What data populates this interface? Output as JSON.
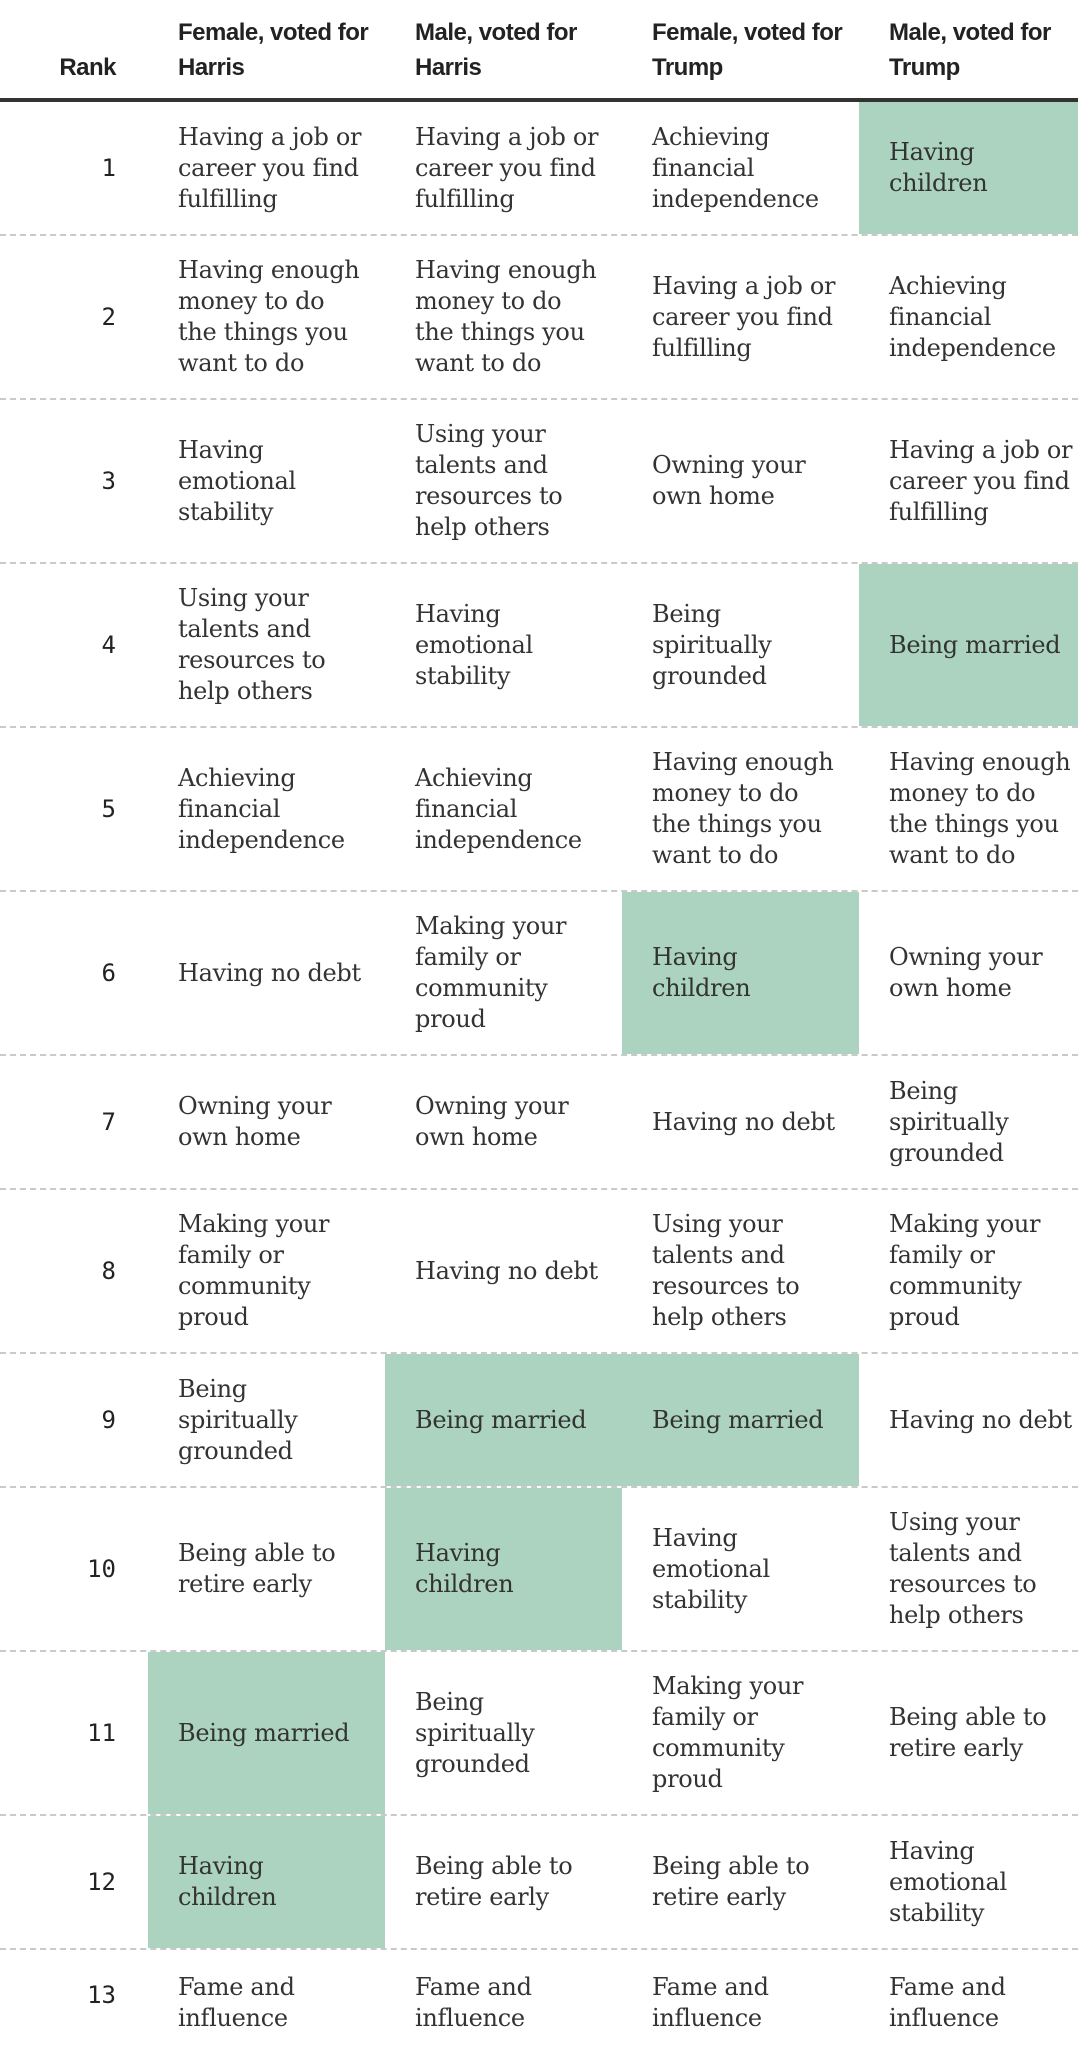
{
  "chart_data": {
    "type": "table",
    "highlight_item": "Having children / Being married",
    "highlight_color": "#abd3bf",
    "columns": [
      "Rank",
      "Female, voted for Harris",
      "Male, voted for Harris",
      "Female, voted for Trump",
      "Male, voted for Trump"
    ],
    "rows": [
      {
        "rank": "1",
        "cells": [
          {
            "text": "Having a job or career you find fulfilling",
            "highlight": false
          },
          {
            "text": "Having a job or career you find fulfilling",
            "highlight": false
          },
          {
            "text": "Achieving financial independence",
            "highlight": false
          },
          {
            "text": "Having children",
            "highlight": true
          }
        ]
      },
      {
        "rank": "2",
        "cells": [
          {
            "text": "Having enough money to do the things you want to do",
            "highlight": false
          },
          {
            "text": "Having enough money to do the things you want to do",
            "highlight": false
          },
          {
            "text": "Having a job or career you find fulfilling",
            "highlight": false
          },
          {
            "text": "Achieving financial independence",
            "highlight": false
          }
        ]
      },
      {
        "rank": "3",
        "cells": [
          {
            "text": "Having emotional stability",
            "highlight": false
          },
          {
            "text": "Using your talents and resources to help others",
            "highlight": false
          },
          {
            "text": "Owning your own home",
            "highlight": false
          },
          {
            "text": "Having a job or career you find fulfilling",
            "highlight": false
          }
        ]
      },
      {
        "rank": "4",
        "cells": [
          {
            "text": "Using your talents and resources to help others",
            "highlight": false
          },
          {
            "text": "Having emotional stability",
            "highlight": false
          },
          {
            "text": "Being spiritually grounded",
            "highlight": false
          },
          {
            "text": "Being married",
            "highlight": true
          }
        ]
      },
      {
        "rank": "5",
        "cells": [
          {
            "text": "Achieving financial independence",
            "highlight": false
          },
          {
            "text": "Achieving financial independence",
            "highlight": false
          },
          {
            "text": "Having enough money to do the things you want to do",
            "highlight": false
          },
          {
            "text": "Having enough money to do the things you want to do",
            "highlight": false
          }
        ]
      },
      {
        "rank": "6",
        "cells": [
          {
            "text": "Having no debt",
            "highlight": false
          },
          {
            "text": "Making your family or community proud",
            "highlight": false
          },
          {
            "text": "Having children",
            "highlight": true
          },
          {
            "text": "Owning your own home",
            "highlight": false
          }
        ]
      },
      {
        "rank": "7",
        "cells": [
          {
            "text": "Owning your own home",
            "highlight": false
          },
          {
            "text": "Owning your own home",
            "highlight": false
          },
          {
            "text": "Having no debt",
            "highlight": false
          },
          {
            "text": "Being spiritually grounded",
            "highlight": false
          }
        ]
      },
      {
        "rank": "8",
        "cells": [
          {
            "text": "Making your family or community proud",
            "highlight": false
          },
          {
            "text": "Having no debt",
            "highlight": false
          },
          {
            "text": "Using your talents and resources to help others",
            "highlight": false
          },
          {
            "text": "Making your family or community proud",
            "highlight": false
          }
        ]
      },
      {
        "rank": "9",
        "cells": [
          {
            "text": "Being spiritually grounded",
            "highlight": false
          },
          {
            "text": "Being married",
            "highlight": true
          },
          {
            "text": "Being married",
            "highlight": true
          },
          {
            "text": "Having no debt",
            "highlight": false
          }
        ]
      },
      {
        "rank": "10",
        "cells": [
          {
            "text": "Being able to retire early",
            "highlight": false
          },
          {
            "text": "Having children",
            "highlight": true
          },
          {
            "text": "Having emotional stability",
            "highlight": false
          },
          {
            "text": "Using your talents and resources to help others",
            "highlight": false
          }
        ]
      },
      {
        "rank": "11",
        "cells": [
          {
            "text": "Being married",
            "highlight": true
          },
          {
            "text": "Being spiritually grounded",
            "highlight": false
          },
          {
            "text": "Making your family or community proud",
            "highlight": false
          },
          {
            "text": "Being able to retire early",
            "highlight": false
          }
        ]
      },
      {
        "rank": "12",
        "cells": [
          {
            "text": "Having children",
            "highlight": true
          },
          {
            "text": "Being able to retire early",
            "highlight": false
          },
          {
            "text": "Being able to retire early",
            "highlight": false
          },
          {
            "text": "Having emotional stability",
            "highlight": false
          }
        ]
      },
      {
        "rank": "13",
        "cells": [
          {
            "text": "Fame and influence",
            "highlight": false
          },
          {
            "text": "Fame and influence",
            "highlight": false
          },
          {
            "text": "Fame and influence",
            "highlight": false
          },
          {
            "text": "Fame and influence",
            "highlight": false
          }
        ]
      }
    ]
  }
}
